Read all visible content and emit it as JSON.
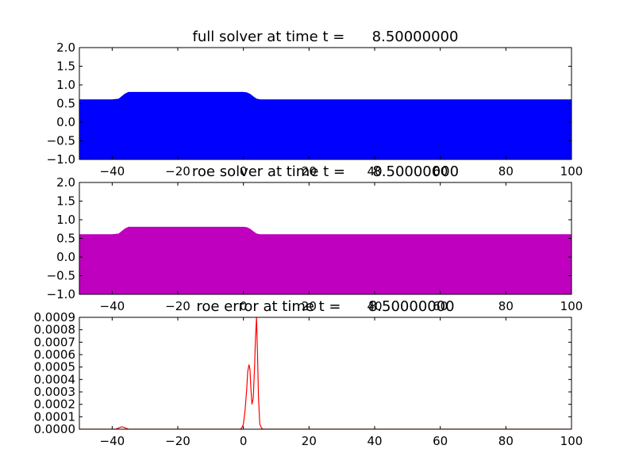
{
  "chart_data": [
    {
      "type": "area",
      "title": "full solver at time t =      8.50000000",
      "xlabel": "",
      "ylabel": "",
      "xlim": [
        -50,
        100
      ],
      "ylim": [
        -1.0,
        2.0
      ],
      "xticks": [
        -40,
        -20,
        0,
        20,
        40,
        60,
        80,
        100
      ],
      "xtick_labels": [
        "−40",
        "−20",
        "0",
        "20",
        "40",
        "60",
        "80",
        "100"
      ],
      "yticks": [
        -1.0,
        -0.5,
        0.0,
        0.5,
        1.0,
        1.5,
        2.0
      ],
      "ytick_labels": [
        "−1.0",
        "−0.5",
        "0.0",
        "0.5",
        "1.0",
        "1.5",
        "2.0"
      ],
      "grid": false,
      "fill_baseline": -1.0,
      "color": "#0000ff",
      "x": [
        -50,
        -40,
        -38,
        -37,
        -36,
        -35,
        -34,
        -20,
        0,
        1,
        2,
        3,
        4,
        5,
        20,
        40,
        60,
        80,
        100
      ],
      "y": [
        0.6,
        0.6,
        0.62,
        0.69,
        0.76,
        0.8,
        0.8,
        0.8,
        0.8,
        0.79,
        0.75,
        0.68,
        0.62,
        0.6,
        0.6,
        0.6,
        0.6,
        0.6,
        0.6
      ]
    },
    {
      "type": "area",
      "title": "roe solver at time t =      8.50000000",
      "xlabel": "",
      "ylabel": "",
      "xlim": [
        -50,
        100
      ],
      "ylim": [
        -1.0,
        2.0
      ],
      "xticks": [
        -40,
        -20,
        0,
        20,
        40,
        60,
        80,
        100
      ],
      "xtick_labels": [
        "−40",
        "−20",
        "0",
        "20",
        "40",
        "60",
        "80",
        "100"
      ],
      "yticks": [
        -1.0,
        -0.5,
        0.0,
        0.5,
        1.0,
        1.5,
        2.0
      ],
      "ytick_labels": [
        "−1.0",
        "−0.5",
        "0.0",
        "0.5",
        "1.0",
        "1.5",
        "2.0"
      ],
      "grid": false,
      "fill_baseline": -1.0,
      "color": "#bf00bf",
      "x": [
        -50,
        -40,
        -38,
        -37,
        -36,
        -35,
        -34,
        -20,
        0,
        1,
        2,
        3,
        4,
        5,
        20,
        40,
        60,
        80,
        100
      ],
      "y": [
        0.6,
        0.6,
        0.62,
        0.69,
        0.76,
        0.8,
        0.8,
        0.8,
        0.8,
        0.79,
        0.75,
        0.68,
        0.62,
        0.6,
        0.6,
        0.6,
        0.6,
        0.6,
        0.6
      ]
    },
    {
      "type": "line",
      "title": "roe error at time t =      8.50000000",
      "xlabel": "",
      "ylabel": "",
      "xlim": [
        -50,
        100
      ],
      "ylim": [
        0.0,
        0.0009
      ],
      "xticks": [
        -40,
        -20,
        0,
        20,
        40,
        60,
        80,
        100
      ],
      "xtick_labels": [
        "−40",
        "−20",
        "0",
        "20",
        "40",
        "60",
        "80",
        "100"
      ],
      "yticks": [
        0.0,
        0.0001,
        0.0002,
        0.0003,
        0.0004,
        0.0005,
        0.0006,
        0.0007,
        0.0008,
        0.0009
      ],
      "ytick_labels": [
        "0.0000",
        "0.0001",
        "0.0002",
        "0.0003",
        "0.0004",
        "0.0005",
        "0.0006",
        "0.0007",
        "0.0008",
        "0.0009"
      ],
      "grid": false,
      "color": "#ff0000",
      "x": [
        -50,
        -39,
        -38,
        -37,
        -36,
        -35,
        -20,
        -1,
        -0.5,
        0,
        0.5,
        1,
        1.3,
        1.7,
        2,
        2.3,
        2.6,
        3,
        3.4,
        3.7,
        4,
        4.3,
        4.6,
        5,
        5.5,
        6,
        20,
        40,
        60,
        80,
        100
      ],
      "y": [
        0,
        0,
        1e-05,
        2e-05,
        1e-05,
        0,
        0,
        0,
        1e-05,
        4e-05,
        0.00015,
        0.00032,
        0.00046,
        0.00052,
        0.00048,
        0.00032,
        0.0002,
        0.00025,
        0.0005,
        0.00075,
        0.0009,
        0.0006,
        0.00025,
        4e-05,
        1e-05,
        0,
        0,
        0,
        0,
        0,
        0
      ]
    }
  ]
}
